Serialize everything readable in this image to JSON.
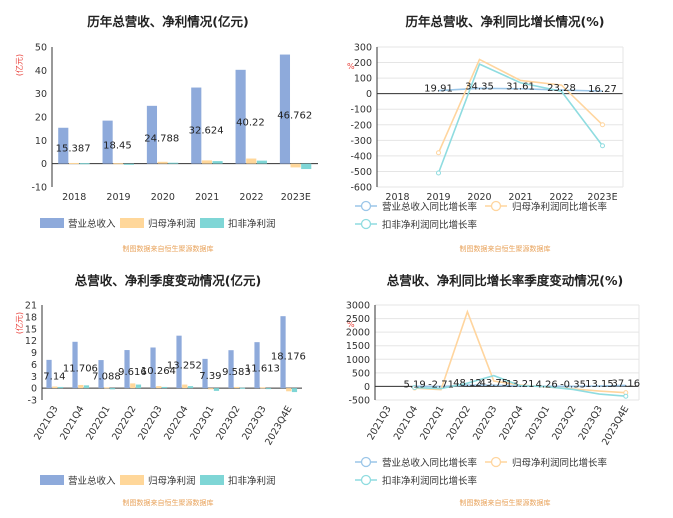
{
  "source_note": "制图数据来自恒生聚源数据库",
  "colors": {
    "revenue": "#8eaadb",
    "netprofit": "#ffd79a",
    "deducted": "#7fd6d6",
    "rev_line": "#9bc6e8",
    "np_line": "#ffd59e",
    "ded_line": "#8fdce0"
  },
  "chart_data": [
    {
      "id": "annual_value",
      "type": "bar",
      "title": "历年总营收、净利情况(亿元)",
      "unit_label": "(亿元)",
      "categories": [
        "2018",
        "2019",
        "2020",
        "2021",
        "2022",
        "2023E"
      ],
      "ylim": [
        -10,
        50
      ],
      "yticks": [
        -10,
        0,
        10,
        20,
        30,
        40,
        50
      ],
      "series": [
        {
          "name": "营业总收入",
          "color_key": "revenue",
          "values": [
            15.387,
            18.45,
            24.788,
            32.624,
            40.22,
            46.762
          ],
          "labels": [
            "15.387",
            "18.45",
            "24.788",
            "32.624",
            "40.22",
            "46.762"
          ]
        },
        {
          "name": "归母净利润",
          "color_key": "netprofit",
          "values": [
            0.3,
            0.2,
            0.8,
            1.4,
            2.2,
            -1.6
          ]
        },
        {
          "name": "扣非净利润",
          "color_key": "deducted",
          "values": [
            0.2,
            -0.5,
            0.4,
            1.1,
            1.3,
            -2.3
          ]
        }
      ]
    },
    {
      "id": "annual_growth",
      "type": "line",
      "title": "历年总营收、净利同比增长情况(%)",
      "unit_label": "%",
      "categories": [
        "2018",
        "2019",
        "2020",
        "2021",
        "2022",
        "2023E"
      ],
      "ylim": [
        -600,
        300
      ],
      "yticks": [
        -600,
        -500,
        -400,
        -300,
        -200,
        -100,
        0,
        100,
        200,
        300
      ],
      "series": [
        {
          "name": "营业总收入同比增长率",
          "color_key": "rev_line",
          "values": [
            null,
            19.91,
            34.35,
            31.61,
            23.28,
            16.27
          ],
          "labels": [
            "",
            "19.91",
            "34.35",
            "31.61",
            "23.28",
            "16.27"
          ]
        },
        {
          "name": "归母净利润同比增长率",
          "color_key": "np_line",
          "values": [
            null,
            -380,
            220,
            85,
            55,
            -200
          ]
        },
        {
          "name": "扣非净利润同比增长率",
          "color_key": "ded_line",
          "values": [
            null,
            -510,
            190,
            70,
            15,
            -335
          ]
        }
      ]
    },
    {
      "id": "quarterly_value",
      "type": "bar",
      "title": "总营收、净利季度变动情况(亿元)",
      "unit_label": "(亿元)",
      "categories": [
        "2021Q3",
        "2021Q4",
        "2022Q1",
        "2022Q2",
        "2022Q3",
        "2022Q4",
        "2023Q1",
        "2023Q2",
        "2023Q3",
        "2023Q4E"
      ],
      "ylim": [
        -3,
        21
      ],
      "yticks": [
        -3,
        0,
        3,
        6,
        9,
        12,
        15,
        18,
        21
      ],
      "series": [
        {
          "name": "营业总收入",
          "color_key": "revenue",
          "values": [
            7.14,
            11.706,
            7.088,
            9.616,
            10.264,
            13.252,
            7.39,
            9.583,
            11.613,
            18.176
          ],
          "labels": [
            "7.14",
            "11.706",
            "7.088",
            "9.616",
            "10.264",
            "13.252",
            "7.39",
            "9.583",
            "11.613",
            "18.176"
          ]
        },
        {
          "name": "归母净利润",
          "color_key": "netprofit",
          "values": [
            0.4,
            0.8,
            0.2,
            1.2,
            0.5,
            0.9,
            -0.3,
            0.3,
            0.2,
            -0.8
          ]
        },
        {
          "name": "扣非净利润",
          "color_key": "deducted",
          "values": [
            0.3,
            0.7,
            -0.3,
            0.9,
            0.3,
            0.5,
            -0.7,
            0.1,
            -0.2,
            -1.0
          ]
        }
      ]
    },
    {
      "id": "quarterly_growth",
      "type": "line",
      "title": "总营收、净利同比增长率季度变动情况(%)",
      "unit_label": "%",
      "categories": [
        "2021Q3",
        "2021Q4",
        "2022Q1",
        "2022Q2",
        "2022Q3",
        "2022Q4",
        "2023Q1",
        "2023Q2",
        "2023Q3",
        "2023Q4E"
      ],
      "ylim": [
        -500,
        3000
      ],
      "yticks": [
        -500,
        0,
        500,
        1000,
        1500,
        2000,
        2500,
        3000
      ],
      "series": [
        {
          "name": "营业总收入同比增长率",
          "color_key": "rev_line",
          "values": [
            null,
            5.19,
            -2.71,
            48.12,
            43.75,
            13.21,
            4.26,
            -0.35,
            13.15,
            37.16
          ],
          "labels": [
            "",
            "5.19",
            "-2.71",
            "48.12",
            "43.75",
            "13.21",
            "4.26",
            "-0.35",
            "13.15",
            "37.16"
          ]
        },
        {
          "name": "归母净利润同比增长率",
          "color_key": "np_line",
          "values": [
            null,
            -60,
            -120,
            2750,
            200,
            50,
            -20,
            -90,
            -170,
            -230
          ]
        },
        {
          "name": "扣非净利润同比增长率",
          "color_key": "ded_line",
          "values": [
            null,
            -40,
            -80,
            120,
            400,
            30,
            -10,
            -110,
            -280,
            -360
          ]
        }
      ]
    }
  ]
}
